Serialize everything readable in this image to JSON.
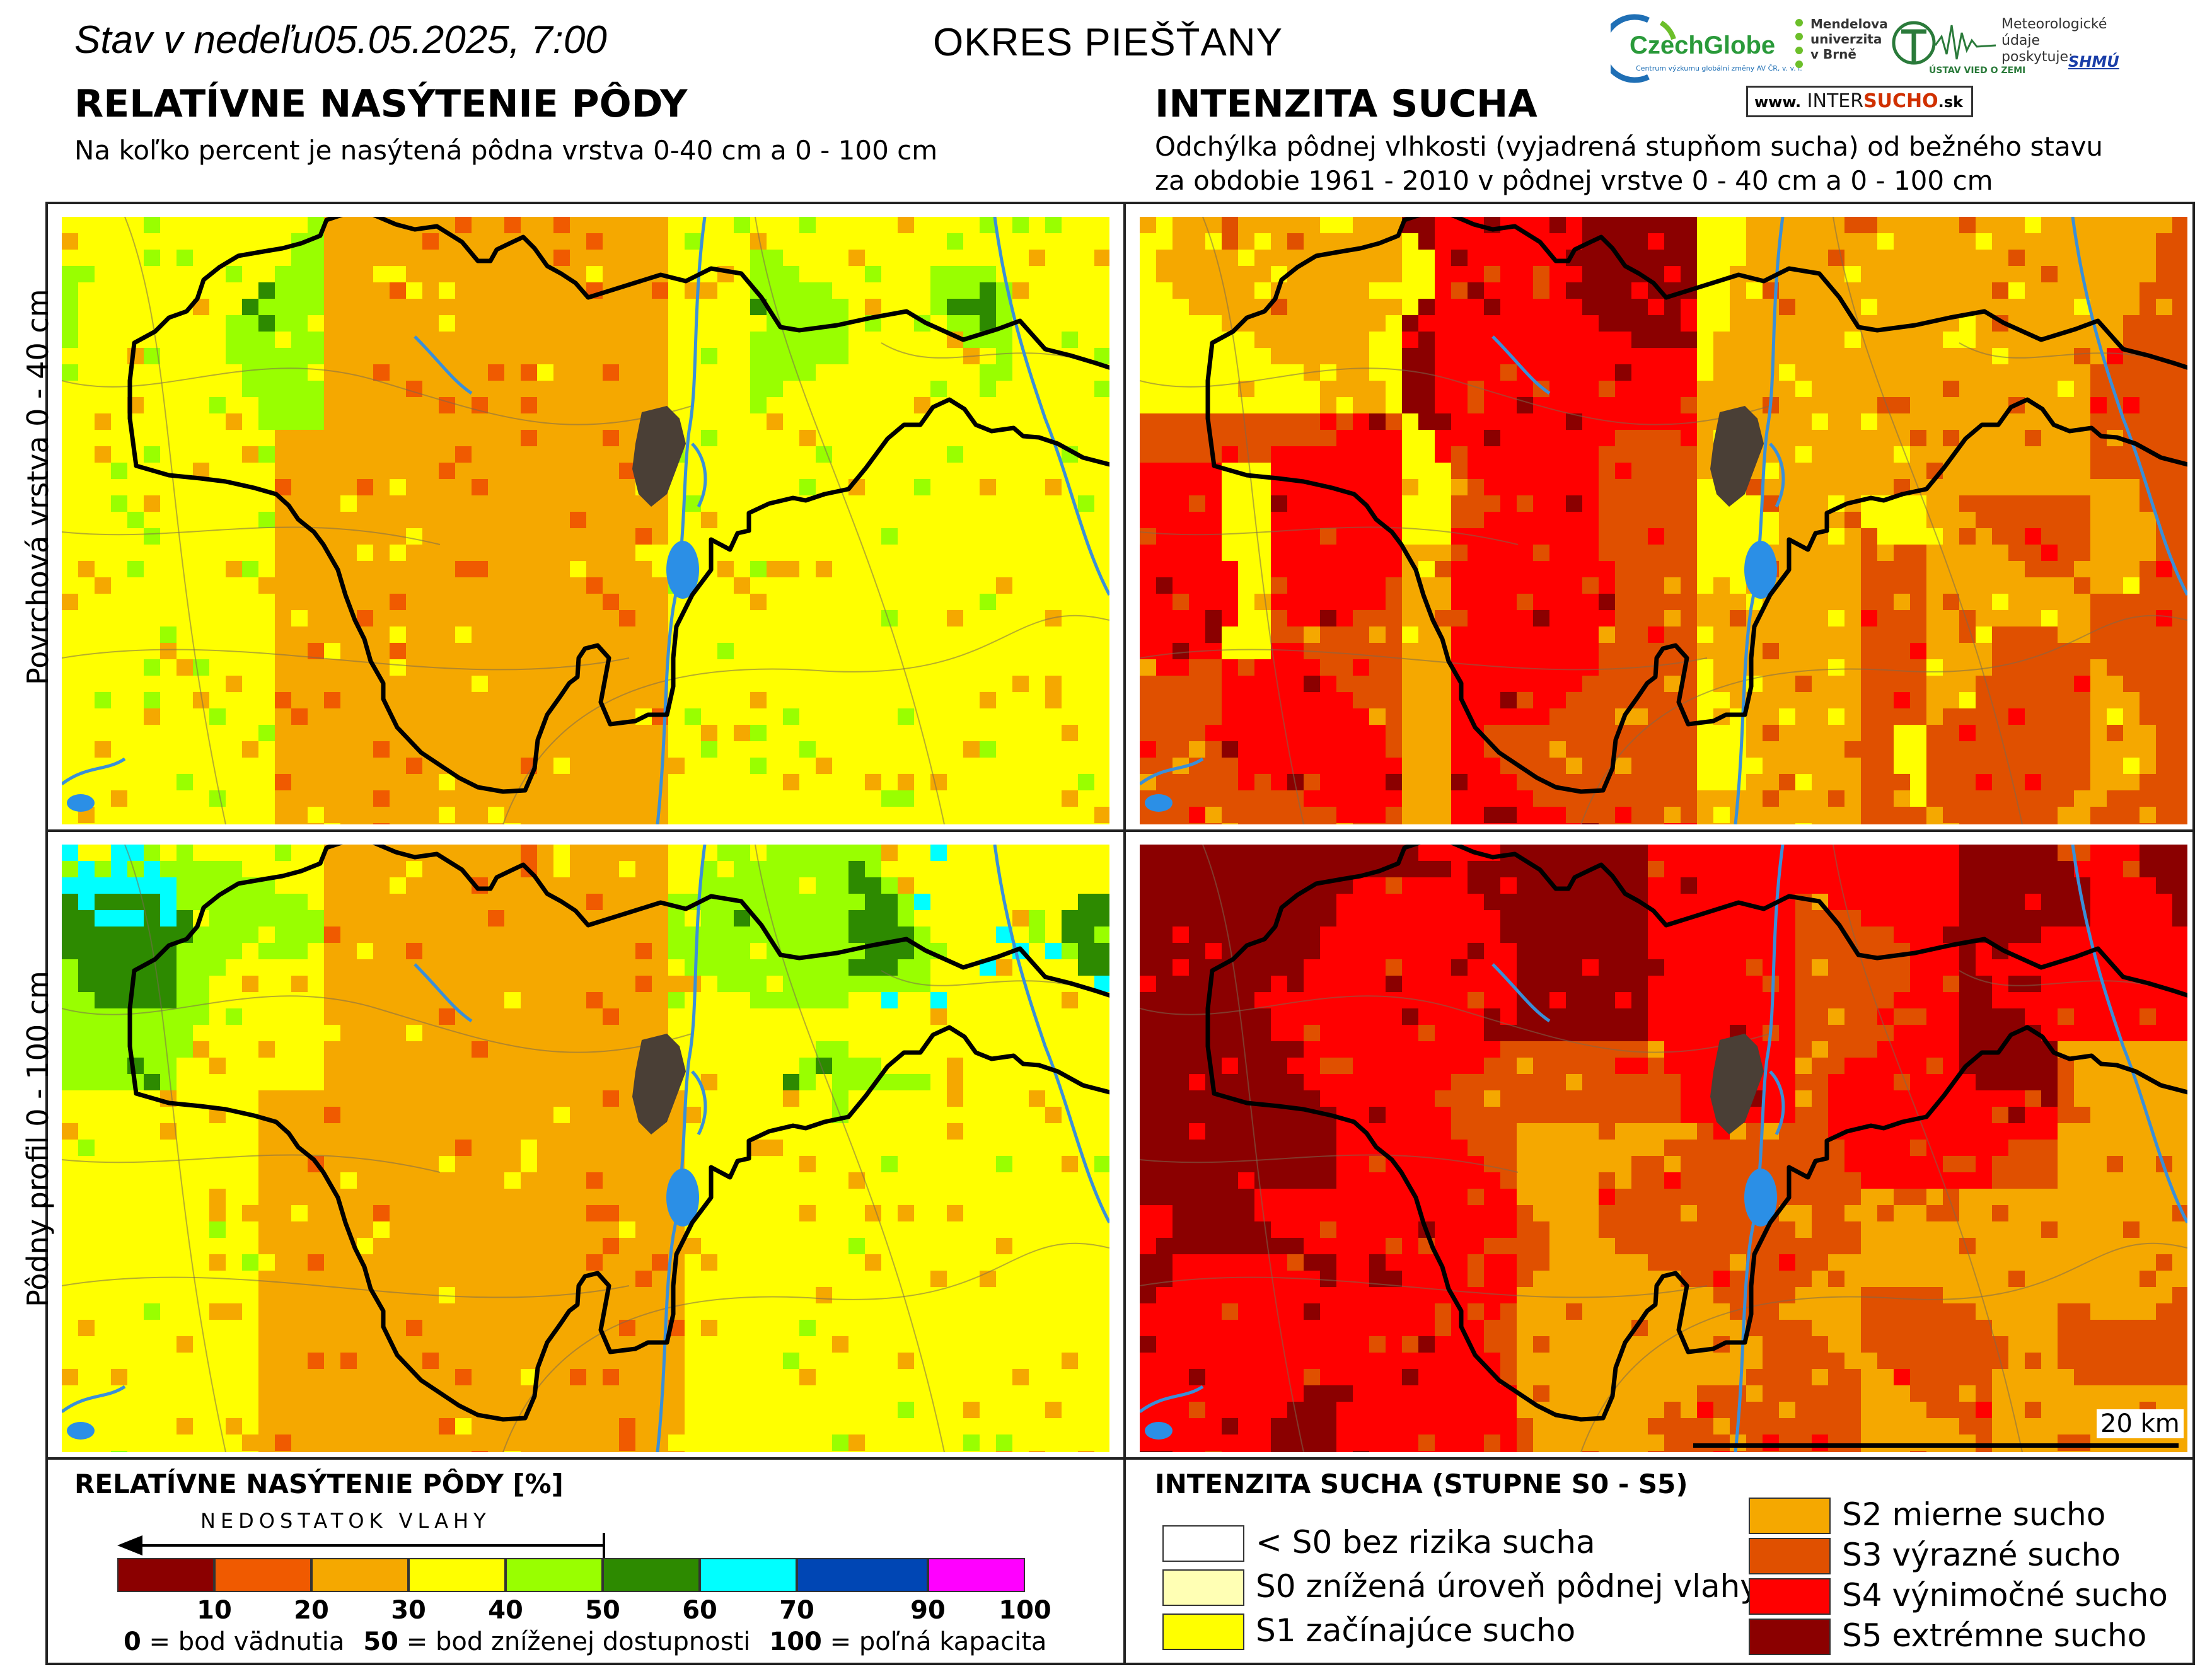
{
  "header": {
    "date": "Stav v nedeľu05.05.2025, 7:00",
    "district": "OKRES  PIEŠŤANY"
  },
  "left_section": {
    "title": "RELATÍVNE NASÝTENIE PÔDY",
    "subtitle": "Na koľko percent je nasýtená pôdna vrstva 0-40 cm a 0 - 100 cm"
  },
  "right_section": {
    "title": "INTENZITA SUCHA",
    "subtitle_line1": "Odchýlka pôdnej vlhkosti (vyjadrená stupňom sucha) od bežného stavu",
    "subtitle_line2": "za obdobie 1961 - 2010 v pôdnej vrstve 0 - 40 cm a 0 - 100 cm"
  },
  "row_labels": {
    "top": "Povrchová vrstva 0 - 40 cm",
    "bottom": "Pôdny profil 0 - 100 cm"
  },
  "scale_bar": "20 km",
  "logos": {
    "czechglobe": "CzechGlobe",
    "czechglobe_sub": "Centrum výzkumu globální změny AV ČR, v. v. i.",
    "mendel_1": "Mendelova",
    "mendel_2": "univerzita",
    "mendel_3": "v Brně",
    "uvz": "ÚSTAV VIED O ZEMI",
    "meteo_1": "Meteorologické",
    "meteo_2": "údaje",
    "meteo_3": "poskytuje:",
    "shmu": "SHMÚ",
    "intersucho_pre": "www.",
    "intersucho_a": "INTER",
    "intersucho_b": "SUCHO",
    "intersucho_post": ".sk"
  },
  "legend_left": {
    "title": "RELATÍVNE NASÝTENIE PÔDY [%]",
    "arrow_label": "NEDOSTATOK VLAHY",
    "colors": [
      "#8b0000",
      "#f05a00",
      "#f5a800",
      "#ffff00",
      "#99ff00",
      "#2d8a00",
      "#00ffff",
      "#0046b4",
      "#ff00ff"
    ],
    "ticks": [
      "10",
      "20",
      "30",
      "40",
      "50",
      "60",
      "70",
      "90",
      "100"
    ],
    "footnote_1_bold": "0",
    "footnote_1": " = bod vädnutia",
    "footnote_2_bold": "50",
    "footnote_2": " = bod zníženej dostupnosti",
    "footnote_3_bold": "100",
    "footnote_3": " = poľná kapacita"
  },
  "legend_right": {
    "title": "INTENZITA SUCHA (STUPNE S0 - S5)",
    "items": [
      {
        "label": "< S0 bez rizika sucha",
        "color": "#ffffff"
      },
      {
        "label": "S0 znížená úroveň pôdnej vlahy",
        "color": "#ffffb4"
      },
      {
        "label": "S1 začínajúce sucho",
        "color": "#ffff00"
      },
      {
        "label": "S2 mierne sucho",
        "color": "#f5a800"
      },
      {
        "label": "S3 výrazné sucho",
        "color": "#e05000"
      },
      {
        "label": "S4 výnimočné sucho",
        "color": "#ff0000"
      },
      {
        "label": "S5 extrémne sucho",
        "color": "#8b0000"
      }
    ]
  }
}
